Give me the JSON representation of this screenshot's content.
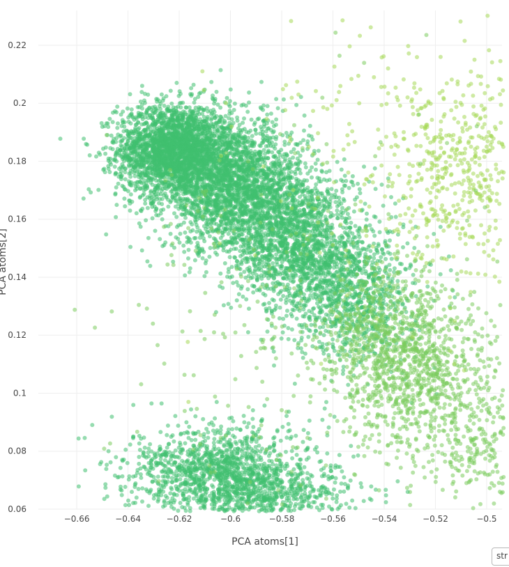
{
  "chart_data": {
    "type": "scatter",
    "title": "",
    "xlabel": "PCA atoms[1]",
    "ylabel": "PCA atoms[2]",
    "xlim": [
      -0.675,
      -0.494
    ],
    "ylim": [
      0.06,
      0.232
    ],
    "x_ticks": [
      -0.66,
      -0.64,
      -0.62,
      -0.6,
      -0.58,
      -0.56,
      -0.54,
      -0.52,
      -0.5
    ],
    "x_tick_labels": [
      "−0.66",
      "−0.64",
      "−0.62",
      "−0.6",
      "−0.58",
      "−0.56",
      "−0.54",
      "−0.52",
      "−0.5"
    ],
    "y_ticks": [
      0.06,
      0.08,
      0.1,
      0.12,
      0.14,
      0.16,
      0.18,
      0.2,
      0.22
    ],
    "y_tick_labels": [
      "0.06",
      "0.08",
      "0.1",
      "0.12",
      "0.14",
      "0.16",
      "0.18",
      "0.2",
      "0.22"
    ],
    "grid": true,
    "marker_opacity": 0.55,
    "colors": {
      "main_cluster": "#3fbf6f",
      "mixed_region": "#7ccc5e",
      "light_region": "#a6d857",
      "grid": "#eeeeee",
      "text": "#444444"
    },
    "clusters": [
      {
        "points": 2500,
        "center": [
          -0.622,
          0.184
        ],
        "spread": [
          0.011,
          0.008
        ],
        "color": "main_cluster"
      },
      {
        "points": 2300,
        "center": [
          -0.598,
          0.171
        ],
        "spread": [
          0.014,
          0.011
        ],
        "color": "main_cluster"
      },
      {
        "points": 1500,
        "center": [
          -0.574,
          0.152
        ],
        "spread": [
          0.013,
          0.012
        ],
        "color": "main_cluster"
      },
      {
        "points": 900,
        "center": [
          -0.552,
          0.134
        ],
        "spread": [
          0.012,
          0.012
        ],
        "color": "main_cluster"
      },
      {
        "points": 700,
        "center": [
          -0.538,
          0.116
        ],
        "spread": [
          0.013,
          0.014
        ],
        "color": "mixed_region"
      },
      {
        "points": 600,
        "center": [
          -0.522,
          0.104
        ],
        "spread": [
          0.014,
          0.015
        ],
        "color": "mixed_region"
      },
      {
        "points": 450,
        "center": [
          -0.51,
          0.178
        ],
        "spread": [
          0.013,
          0.016
        ],
        "color": "light_region"
      },
      {
        "points": 250,
        "center": [
          -0.5,
          0.082
        ],
        "spread": [
          0.012,
          0.012
        ],
        "color": "mixed_region"
      },
      {
        "points": 1300,
        "center": [
          -0.603,
          0.073
        ],
        "spread": [
          0.018,
          0.008
        ],
        "color": "main_cluster"
      },
      {
        "points": 500,
        "center": [
          -0.585,
          0.064
        ],
        "spread": [
          0.018,
          0.005
        ],
        "color": "main_cluster"
      },
      {
        "points": 180,
        "center": [
          -0.54,
          0.18
        ],
        "spread": [
          0.03,
          0.03
        ],
        "color": "light_region"
      },
      {
        "points": 250,
        "center": [
          -0.58,
          0.13
        ],
        "spread": [
          0.035,
          0.035
        ],
        "color": "mixed_region"
      }
    ]
  },
  "color_input": {
    "value": "str"
  }
}
